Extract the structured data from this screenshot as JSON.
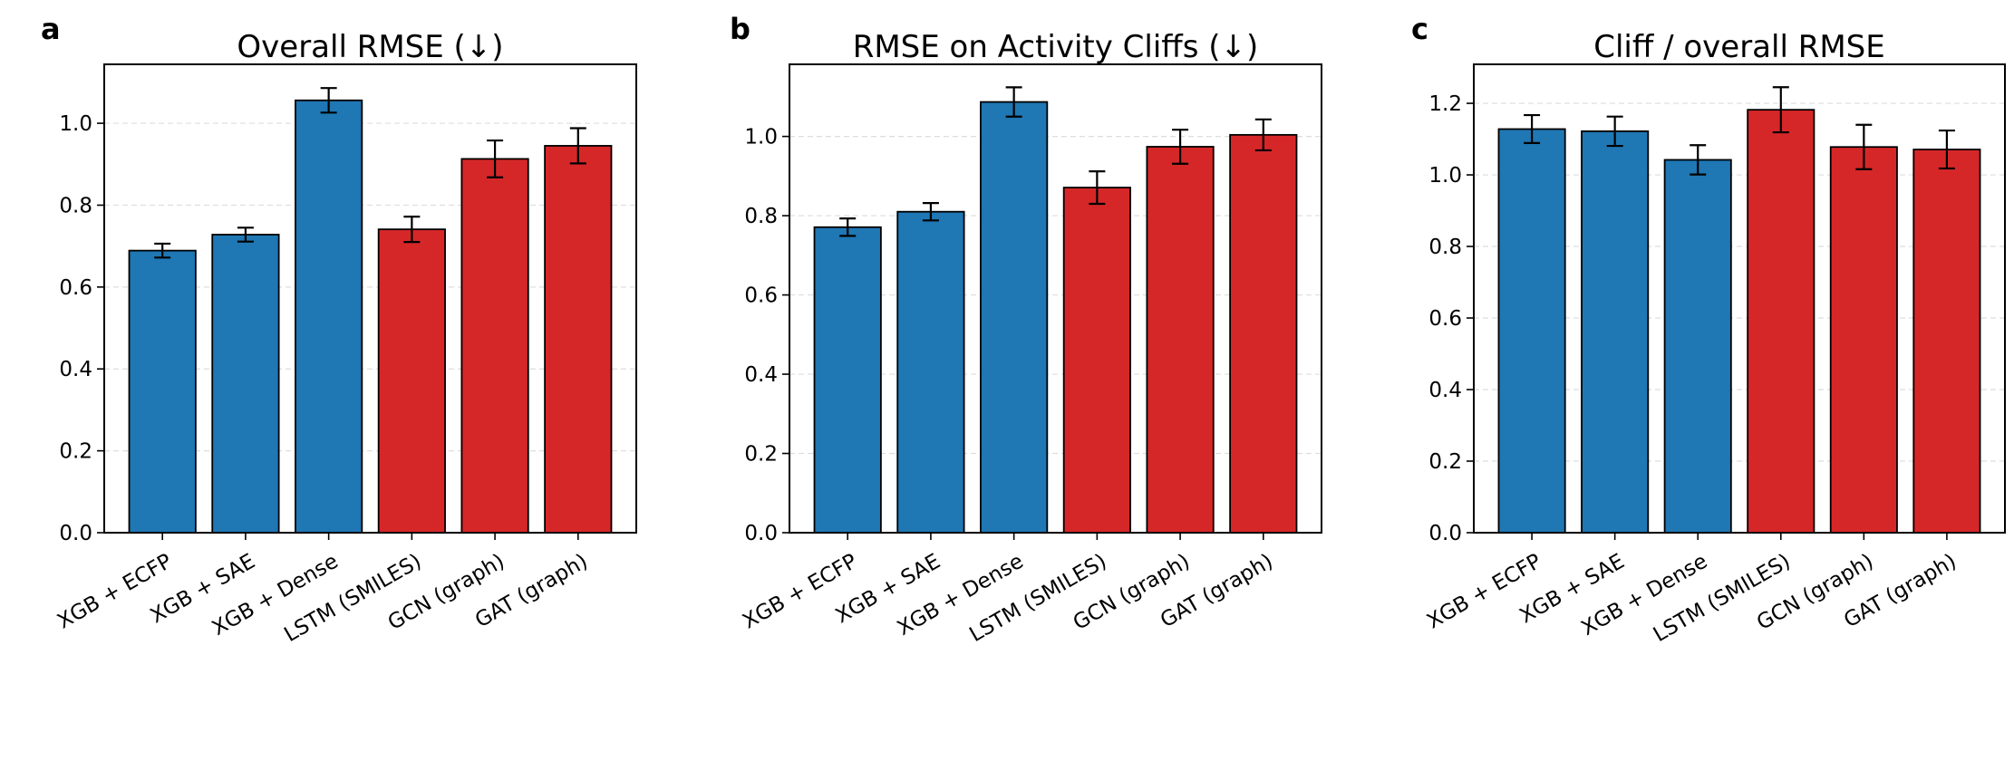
{
  "colors": {
    "classical": "#1f77b4",
    "deep": "#d62728",
    "grid": "#dddddd",
    "edge": "#000000"
  },
  "chart_data": [
    {
      "type": "bar",
      "panel_letter": "a",
      "title": "Overall RMSE (↓)",
      "xlabel": "",
      "ylabel": "",
      "categories": [
        "XGB + ECFP",
        "XGB + SAE",
        "XGB + Dense",
        "LSTM (SMILES)",
        "GCN (graph)",
        "GAT (graph)"
      ],
      "values": [
        0.689,
        0.728,
        1.056,
        0.741,
        0.913,
        0.945
      ],
      "errors": [
        0.017,
        0.017,
        0.03,
        0.031,
        0.045,
        0.043
      ],
      "bar_colors": [
        "#1f77b4",
        "#1f77b4",
        "#1f77b4",
        "#d62728",
        "#d62728",
        "#d62728"
      ],
      "ylim": [
        0,
        1.144
      ],
      "yticks": [
        0.0,
        0.2,
        0.4,
        0.6,
        0.8,
        1.0
      ],
      "ytick_labels": [
        "0.0",
        "0.2",
        "0.4",
        "0.6",
        "0.8",
        "1.0"
      ],
      "grid": "y, dashed"
    },
    {
      "type": "bar",
      "panel_letter": "b",
      "title": "RMSE on Activity Cliffs (↓)",
      "xlabel": "",
      "ylabel": "",
      "categories": [
        "XGB + ECFP",
        "XGB + SAE",
        "XGB + Dense",
        "LSTM (SMILES)",
        "GCN (graph)",
        "GAT (graph)"
      ],
      "values": [
        0.771,
        0.81,
        1.087,
        0.871,
        0.974,
        1.004
      ],
      "errors": [
        0.022,
        0.022,
        0.037,
        0.041,
        0.043,
        0.039
      ],
      "bar_colors": [
        "#1f77b4",
        "#1f77b4",
        "#1f77b4",
        "#d62728",
        "#d62728",
        "#d62728"
      ],
      "ylim": [
        0,
        1.182
      ],
      "yticks": [
        0.0,
        0.2,
        0.4,
        0.6,
        0.8,
        1.0
      ],
      "ytick_labels": [
        "0.0",
        "0.2",
        "0.4",
        "0.6",
        "0.8",
        "1.0"
      ],
      "grid": "y, dashed"
    },
    {
      "type": "bar",
      "panel_letter": "c",
      "title": "Cliff / overall RMSE",
      "xlabel": "",
      "ylabel": "",
      "categories": [
        "XGB + ECFP",
        "XGB + SAE",
        "XGB + Dense",
        "LSTM (SMILES)",
        "GCN (graph)",
        "GAT (graph)"
      ],
      "values": [
        1.128,
        1.122,
        1.042,
        1.182,
        1.078,
        1.071
      ],
      "errors": [
        0.039,
        0.041,
        0.041,
        0.063,
        0.062,
        0.053
      ],
      "bar_colors": [
        "#1f77b4",
        "#1f77b4",
        "#1f77b4",
        "#d62728",
        "#d62728",
        "#d62728"
      ],
      "ylim": [
        0,
        1.309
      ],
      "yticks": [
        0.0,
        0.2,
        0.4,
        0.6,
        0.8,
        1.0,
        1.2
      ],
      "ytick_labels": [
        "0.0",
        "0.2",
        "0.4",
        "0.6",
        "0.8",
        "1.0",
        "1.2"
      ],
      "grid": "y, dashed"
    }
  ]
}
